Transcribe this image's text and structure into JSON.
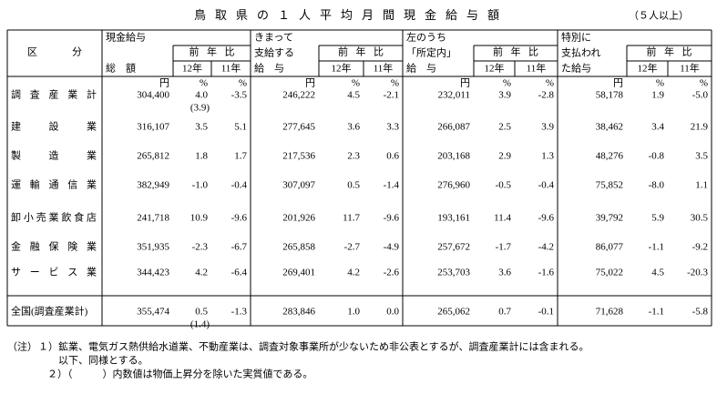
{
  "title": "鳥取県の１人平均月間現金給与額",
  "note_scope": "（５人以上）",
  "table": {
    "category_header": "区　分",
    "groups": [
      {
        "lines": [
          "現金給与",
          "総　額"
        ],
        "ratio": "前年比",
        "years": [
          "12年",
          "11年"
        ]
      },
      {
        "lines": [
          "きまって",
          "支給する",
          "給　与"
        ],
        "ratio": "前年比",
        "years": [
          "12年",
          "11年"
        ]
      },
      {
        "lines": [
          "左のうち",
          "「所定内」",
          "給　与"
        ],
        "ratio": "前年比",
        "years": [
          "12年",
          "11年"
        ]
      },
      {
        "lines": [
          "特別に",
          "支払われ",
          "た給与"
        ],
        "ratio": "前年比",
        "years": [
          "12年",
          "11年"
        ]
      }
    ],
    "units": [
      "円",
      "%",
      "%",
      "円",
      "%",
      "%",
      "円",
      "%",
      "%",
      "円",
      "%",
      "%"
    ],
    "rows": [
      {
        "label": "調査産業計",
        "cells": [
          "304,400",
          "4.0",
          "-3.5",
          "246,222",
          "4.5",
          "-2.1",
          "232,011",
          "3.9",
          "-2.8",
          "58,178",
          "1.9",
          "-5.0"
        ],
        "real_value": "(3.9)"
      },
      {
        "label": "建設業",
        "cells": [
          "316,107",
          "3.5",
          "5.1",
          "277,645",
          "3.6",
          "3.3",
          "266,087",
          "2.5",
          "3.9",
          "38,462",
          "3.4",
          "21.9"
        ]
      },
      {
        "label": "製造業",
        "cells": [
          "265,812",
          "1.8",
          "1.7",
          "217,536",
          "2.3",
          "0.6",
          "203,168",
          "2.9",
          "1.3",
          "48,276",
          "-0.8",
          "3.5"
        ]
      },
      {
        "label": "運輸通信業",
        "cells": [
          "382,949",
          "-1.0",
          "-0.4",
          "307,097",
          "0.5",
          "-1.4",
          "276,960",
          "-0.5",
          "-0.4",
          "75,852",
          "-8.0",
          "1.1"
        ]
      },
      {
        "label": "卸小売業飲食店",
        "cells": [
          "241,718",
          "10.9",
          "-9.6",
          "201,926",
          "11.7",
          "-9.6",
          "193,161",
          "11.4",
          "-9.6",
          "39,792",
          "5.9",
          "30.5"
        ]
      },
      {
        "label": "金融保険業",
        "cells": [
          "351,935",
          "-2.3",
          "-6.7",
          "265,858",
          "-2.7",
          "-4.9",
          "257,672",
          "-1.7",
          "-4.2",
          "86,077",
          "-1.1",
          "-9.2"
        ]
      },
      {
        "label": "サービス業",
        "cells": [
          "344,423",
          "4.2",
          "-6.4",
          "269,401",
          "4.2",
          "-2.6",
          "253,703",
          "3.6",
          "-1.6",
          "75,022",
          "4.5",
          "-20.3"
        ]
      },
      {
        "label": "全国(調査産業計)",
        "cells": [
          "355,474",
          "0.5",
          "-1.3",
          "283,846",
          "1.0",
          "0.0",
          "265,062",
          "0.7",
          "-0.1",
          "71,628",
          "-1.1",
          "-5.8"
        ],
        "real_value": "(1.4)"
      }
    ]
  },
  "notes": {
    "label": "（注）",
    "lines": [
      "１）鉱業、電気ガス熱供給水道業、不動産業は、調査対象事業所が少ないため非公表とするが、調査産業計には含まれる。",
      "以下、同様とする。",
      "２）（　　　）内数値は物価上昇分を除いた実質値である。"
    ]
  }
}
